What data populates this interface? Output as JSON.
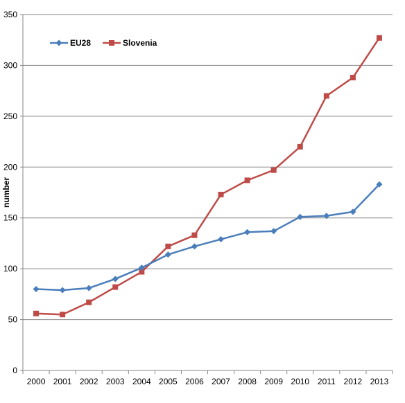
{
  "chart_data": {
    "type": "line",
    "title": "",
    "xlabel": "",
    "ylabel": "number",
    "ylim": [
      0,
      350
    ],
    "yticks": [
      0,
      50,
      100,
      150,
      200,
      250,
      300,
      350
    ],
    "grid": true,
    "legend_position": "top-left",
    "categories": [
      "2000",
      "2001",
      "2002",
      "2003",
      "2004",
      "2005",
      "2006",
      "2007",
      "2008",
      "2009",
      "2010",
      "2011",
      "2012",
      "2013"
    ],
    "series": [
      {
        "name": "EU28",
        "color": "#4a7ebb",
        "marker": "diamond",
        "values": [
          80,
          79,
          81,
          90,
          101,
          114,
          122,
          129,
          136,
          137,
          151,
          152,
          156,
          183
        ]
      },
      {
        "name": "Slovenia",
        "color": "#be4b48",
        "marker": "square",
        "values": [
          56,
          55,
          67,
          82,
          97,
          122,
          133,
          173,
          187,
          197,
          220,
          270,
          288,
          327
        ]
      }
    ]
  }
}
